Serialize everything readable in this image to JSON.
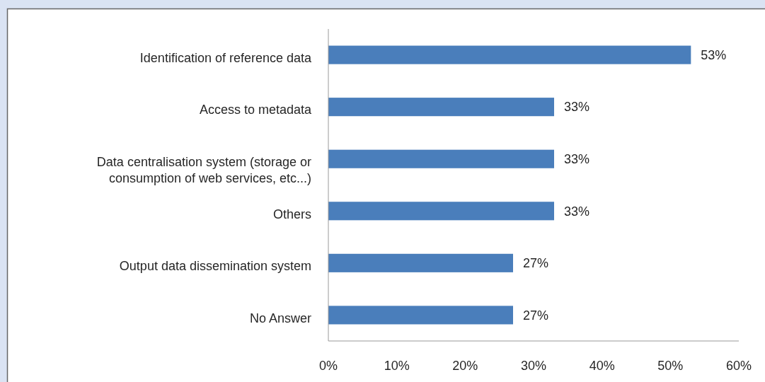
{
  "chart_data": {
    "type": "bar",
    "orientation": "horizontal",
    "categories": [
      "Identification of reference data",
      "Access to metadata",
      "Data centralisation system (storage or consumption of web services, etc...)",
      "Others",
      "Output data dissemination system",
      "No Answer"
    ],
    "values": [
      53,
      33,
      33,
      33,
      27,
      27
    ],
    "value_labels": [
      "53%",
      "33%",
      "33%",
      "33%",
      "27%",
      "27%"
    ],
    "color": "#4a7ebb",
    "xlim": [
      0,
      60
    ],
    "xticks": [
      {
        "value": 0,
        "label": "0%"
      },
      {
        "value": 10,
        "label": "10%"
      },
      {
        "value": 20,
        "label": "20%"
      },
      {
        "value": 30,
        "label": "30%"
      },
      {
        "value": 40,
        "label": "40%"
      },
      {
        "value": 50,
        "label": "50%"
      },
      {
        "value": 60,
        "label": "60%"
      }
    ]
  }
}
